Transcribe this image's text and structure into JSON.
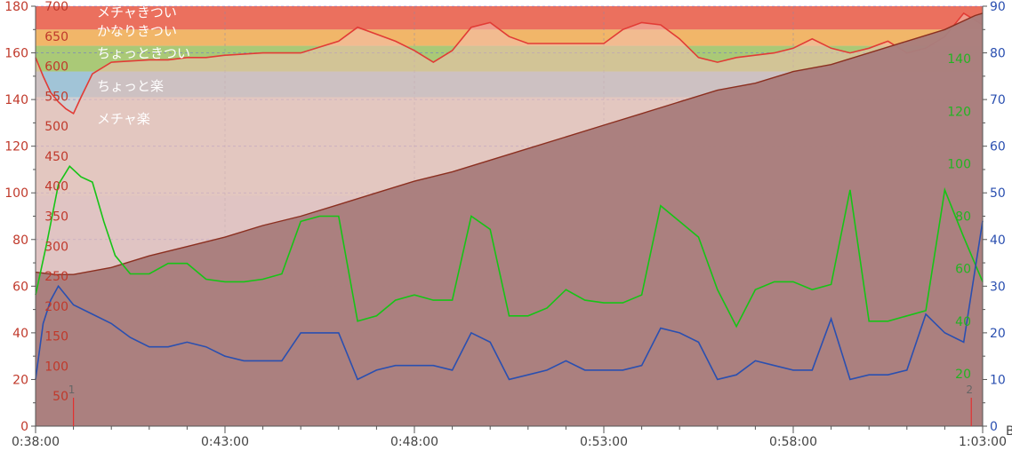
{
  "chart_data": {
    "type": "line",
    "x_ticks": [
      "0:38:00",
      "0:43:00",
      "0:48:00",
      "0:53:00",
      "0:58:00",
      "1:03:00"
    ],
    "x_domain_minutes": [
      38,
      63
    ],
    "unit_corner": "B",
    "axes": {
      "left": {
        "ticks": [
          "0",
          "20",
          "40",
          "60",
          "80",
          "100",
          "120",
          "140",
          "160",
          "180"
        ],
        "range": [
          0,
          180
        ],
        "color": "#c0392b"
      },
      "heart_rate": {
        "ticks": [
          "50",
          "100",
          "150",
          "200",
          "250",
          "300",
          "350",
          "400",
          "450",
          "500",
          "550",
          "600",
          "650",
          "700"
        ],
        "range": [
          0,
          700
        ],
        "color": "#c0392b"
      },
      "right_green": {
        "ticks": [
          "20",
          "40",
          "60",
          "80",
          "100",
          "120",
          "140"
        ],
        "range": [
          0,
          160
        ],
        "color": "#22b422"
      },
      "right_blue": {
        "ticks": [
          "0",
          "10",
          "20",
          "30",
          "40",
          "50",
          "60",
          "70",
          "80",
          "90"
        ],
        "range": [
          0,
          90
        ],
        "color": "#2a4fb0"
      }
    },
    "zones": [
      {
        "label": "メチャきつい",
        "from": 170,
        "to": 180,
        "color": "#ee6650"
      },
      {
        "label": "かなりきつい",
        "from": 163,
        "to": 170,
        "color": "#f5b45c"
      },
      {
        "label": "ちょっときつい",
        "from": 152,
        "to": 163,
        "color": "#a6c96c"
      },
      {
        "label": "ちょっと楽",
        "from": 141,
        "to": 152,
        "color": "#9cc3d6"
      },
      {
        "label": "メチャ楽",
        "from": 0,
        "to": 141,
        "color": "#d0d0d0"
      }
    ],
    "series": [
      {
        "color": "#8b2f20",
        "fill": "#a97e7d",
        "x": [
          38,
          38.5,
          39,
          40,
          41,
          42,
          43,
          44,
          45,
          46,
          47,
          48,
          49,
          50,
          51,
          52,
          53,
          54,
          55,
          56,
          57,
          58,
          59,
          60,
          61,
          62,
          62.8,
          63
        ],
        "values": [
          66,
          65,
          65,
          68,
          73,
          77,
          81,
          86,
          90,
          95,
          100,
          105,
          109,
          114,
          119,
          124,
          129,
          134,
          139,
          144,
          147,
          152,
          155,
          160,
          165,
          170,
          176,
          177
        ]
      },
      {
        "color": "#e23b35",
        "fill": "#f3c0b0",
        "x": [
          38,
          38.2,
          38.4,
          38.6,
          38.8,
          39,
          39.2,
          39.5,
          40,
          41,
          41.5,
          42,
          42.5,
          43,
          44,
          45,
          46,
          46.5,
          47,
          47.5,
          48,
          48.5,
          49,
          49.5,
          50,
          50.5,
          51,
          52,
          53,
          53.5,
          54,
          54.5,
          55,
          55.5,
          56,
          56.5,
          57,
          57.5,
          58,
          58.5,
          59,
          59.5,
          60,
          60.5,
          61,
          61.5,
          62,
          62.5,
          63
        ],
        "values": [
          158,
          150,
          143,
          139,
          136,
          134,
          141,
          151,
          156,
          157,
          157,
          158,
          158,
          159,
          160,
          160,
          165,
          171,
          168,
          165,
          161,
          156,
          161,
          171,
          173,
          167,
          164,
          164,
          164,
          170,
          173,
          172,
          166,
          158,
          156,
          158,
          159,
          160,
          162,
          166,
          162,
          160,
          162,
          165,
          160,
          162,
          167,
          177,
          172
        ]
      },
      {
        "color": "#16c416",
        "x": [
          38,
          38.3,
          38.6,
          38.9,
          39.2,
          39.5,
          39.8,
          40.1,
          40.5,
          41,
          41.5,
          42,
          42.5,
          43,
          43.5,
          44,
          44.5,
          45,
          45.5,
          46,
          46.5,
          47,
          47.5,
          48,
          48.5,
          49,
          49.5,
          50,
          50.5,
          51,
          51.5,
          52,
          52.5,
          53,
          53.5,
          54,
          54.5,
          55,
          55.5,
          56,
          56.5,
          57,
          57.5,
          58,
          58.5,
          59,
          59.5,
          60,
          60.5,
          61,
          61.5,
          62,
          62.5,
          63
        ],
        "values": [
          50,
          70,
          92,
          99,
          95,
          93,
          78,
          65,
          58,
          58,
          62,
          62,
          56,
          55,
          55,
          56,
          58,
          78,
          80,
          80,
          40,
          42,
          48,
          50,
          48,
          48,
          80,
          75,
          42,
          42,
          45,
          52,
          48,
          47,
          47,
          50,
          84,
          78,
          72,
          52,
          38,
          52,
          55,
          55,
          52,
          54,
          90,
          40,
          40,
          42,
          44,
          90,
          72,
          55
        ]
      },
      {
        "color": "#2a4fb0",
        "x": [
          38,
          38.2,
          38.4,
          38.6,
          38.8,
          39,
          39.5,
          40,
          40.5,
          41,
          41.5,
          42,
          42.5,
          43,
          43.5,
          44,
          44.5,
          45,
          45.5,
          46,
          46.5,
          47,
          47.5,
          48,
          48.5,
          49,
          49.5,
          50,
          50.5,
          51,
          51.5,
          52,
          52.5,
          53,
          53.5,
          54,
          54.5,
          55,
          55.5,
          56,
          56.5,
          57,
          57.5,
          58,
          58.5,
          59,
          59.5,
          60,
          60.5,
          61,
          61.5,
          62,
          62.5,
          63
        ],
        "values": [
          10,
          22,
          27,
          30,
          28,
          26,
          24,
          22,
          19,
          17,
          17,
          18,
          17,
          15,
          14,
          14,
          14,
          20,
          20,
          20,
          10,
          12,
          13,
          13,
          13,
          12,
          20,
          18,
          10,
          11,
          12,
          14,
          12,
          12,
          12,
          13,
          21,
          20,
          18,
          10,
          11,
          14,
          13,
          12,
          12,
          23,
          10,
          11,
          11,
          12,
          24,
          20,
          18,
          44
        ]
      }
    ],
    "laps": [
      {
        "label": "1",
        "x": 39
      },
      {
        "label": "2",
        "x": 62.7
      }
    ]
  }
}
